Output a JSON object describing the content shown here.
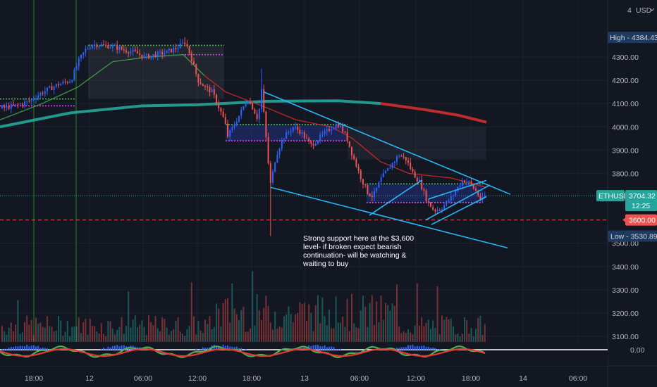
{
  "chart_data": {
    "type": "candlestick",
    "symbol": "ETHUSD",
    "currency": "USD",
    "price_axis": {
      "ticks": [
        3100,
        3200,
        3300,
        3400,
        3500,
        3800,
        3900,
        4000,
        4100,
        4200,
        4300
      ],
      "tick_labels": [
        "3100.00",
        "3200.00",
        "3300.00",
        "3400.00",
        "3500.00",
        "3800.00",
        "3900.00",
        "4000.00",
        "4100.00",
        "4200.00",
        "4300.00"
      ],
      "range": [
        3080,
        4420
      ]
    },
    "time_axis": {
      "labels": [
        "18:00",
        "12",
        "06:00",
        "12:00",
        "18:00",
        "13",
        "06:00",
        "12:00",
        "18:00",
        "14",
        "06:00"
      ]
    },
    "badges": {
      "high": {
        "label": "High",
        "value": "4384.43",
        "price": 4384.43
      },
      "current": {
        "label": "ETHUSD",
        "value": "3704.32",
        "countdown": "12:25",
        "price": 3704.32
      },
      "level": {
        "value": "3600.00",
        "price": 3600
      },
      "low": {
        "label": "Low",
        "value": "3530.89",
        "price": 3530.89
      }
    },
    "macd_zero_label": "0.00",
    "annotation": "Strong support here at the $3,600 level- if broken expect bearish continuation- will be watching & waiting to buy",
    "price_path": [
      [
        0,
        4080
      ],
      [
        20,
        4090
      ],
      [
        40,
        4110
      ],
      [
        60,
        4150
      ],
      [
        80,
        4180
      ],
      [
        100,
        4200
      ],
      [
        110,
        4280
      ],
      [
        120,
        4330
      ],
      [
        130,
        4355
      ],
      [
        145,
        4350
      ],
      [
        160,
        4345
      ],
      [
        175,
        4330
      ],
      [
        190,
        4320
      ],
      [
        205,
        4300
      ],
      [
        220,
        4310
      ],
      [
        235,
        4320
      ],
      [
        250,
        4340
      ],
      [
        262,
        4365
      ],
      [
        270,
        4300
      ],
      [
        280,
        4200
      ],
      [
        290,
        4170
      ],
      [
        300,
        4150
      ],
      [
        310,
        4080
      ],
      [
        318,
        4020
      ],
      [
        322,
        3960
      ],
      [
        330,
        4000
      ],
      [
        340,
        4060
      ],
      [
        350,
        4120
      ],
      [
        358,
        4080
      ],
      [
        365,
        4030
      ],
      [
        370,
        4160
      ],
      [
        375,
        4000
      ],
      [
        380,
        3830
      ],
      [
        383,
        3750
      ],
      [
        390,
        3870
      ],
      [
        400,
        3950
      ],
      [
        415,
        4000
      ],
      [
        425,
        3980
      ],
      [
        440,
        3920
      ],
      [
        455,
        3960
      ],
      [
        470,
        4000
      ],
      [
        480,
        4010
      ],
      [
        490,
        3960
      ],
      [
        500,
        3870
      ],
      [
        510,
        3790
      ],
      [
        520,
        3720
      ],
      [
        528,
        3700
      ],
      [
        540,
        3780
      ],
      [
        555,
        3840
      ],
      [
        565,
        3880
      ],
      [
        575,
        3860
      ],
      [
        585,
        3800
      ],
      [
        595,
        3760
      ],
      [
        605,
        3680
      ],
      [
        615,
        3640
      ],
      [
        625,
        3650
      ],
      [
        640,
        3700
      ],
      [
        655,
        3770
      ],
      [
        665,
        3760
      ],
      [
        675,
        3720
      ],
      [
        682,
        3680
      ],
      [
        688,
        3710
      ],
      [
        690,
        3704.32
      ]
    ],
    "moving_averages": [
      {
        "color": "#26a69a",
        "points": [
          [
            0,
            4000
          ],
          [
            100,
            4060
          ],
          [
            200,
            4090
          ],
          [
            280,
            4095
          ],
          [
            380,
            4110
          ],
          [
            480,
            4112
          ],
          [
            540,
            4100
          ]
        ]
      },
      {
        "color": "#d32f2f",
        "points": [
          [
            540,
            4100
          ],
          [
            600,
            4075
          ],
          [
            650,
            4050
          ],
          [
            690,
            4020
          ]
        ]
      },
      {
        "color": "#43a047",
        "points": [
          [
            0,
            4030
          ],
          [
            60,
            4100
          ],
          [
            110,
            4170
          ],
          [
            160,
            4280
          ],
          [
            210,
            4300
          ],
          [
            260,
            4310
          ],
          [
            290,
            4220
          ]
        ]
      },
      {
        "color": "#c62828",
        "points": [
          [
            290,
            4220
          ],
          [
            320,
            4150
          ],
          [
            380,
            4080
          ],
          [
            420,
            4030
          ],
          [
            470,
            4000
          ],
          [
            500,
            3950
          ],
          [
            540,
            3850
          ],
          [
            580,
            3800
          ],
          [
            640,
            3780
          ],
          [
            690,
            3740
          ]
        ]
      }
    ],
    "trendlines": [
      [
        [
          374,
          4150
        ],
        [
          724,
          3710
        ]
      ],
      [
        [
          384,
          3740
        ],
        [
          720,
          3480
        ]
      ],
      [
        [
          524,
          3620
        ],
        [
          598,
          3770
        ]
      ],
      [
        [
          604,
          3600
        ],
        [
          695,
          3750
        ]
      ],
      [
        [
          608,
          3690
        ],
        [
          690,
          3770
        ]
      ],
      [
        [
          612,
          3580
        ],
        [
          690,
          3700
        ]
      ]
    ],
    "horizontal_levels": [
      {
        "price": 4350,
        "x1": 125,
        "x2": 318,
        "color": "#4caf50"
      },
      {
        "price": 4310,
        "x1": 258,
        "x2": 318,
        "color": "#e040fb"
      },
      {
        "price": 4120,
        "x1": 0,
        "x2": 108,
        "color": "#4caf50"
      },
      {
        "price": 4090,
        "x1": 0,
        "x2": 108,
        "color": "#e040fb"
      },
      {
        "price": 4010,
        "x1": 320,
        "x2": 493,
        "color": "#4caf50"
      },
      {
        "price": 3940,
        "x1": 320,
        "x2": 493,
        "color": "#e040fb"
      },
      {
        "price": 3755,
        "x1": 520,
        "x2": 685,
        "color": "#4caf50"
      },
      {
        "price": 3675,
        "x1": 520,
        "x2": 685,
        "color": "#e040fb"
      }
    ],
    "zones": [
      {
        "x1": 125,
        "x2": 318,
        "p1": 4350,
        "p2": 4120,
        "color": "rgba(200,200,220,0.08)"
      },
      {
        "x1": 320,
        "x2": 493,
        "p1": 4010,
        "p2": 3940,
        "color": "rgba(40,60,180,0.35)"
      },
      {
        "x1": 520,
        "x2": 685,
        "p1": 3755,
        "p2": 3675,
        "color": "rgba(40,60,180,0.35)"
      },
      {
        "x1": 493,
        "x2": 690,
        "p1": 4000,
        "p2": 3860,
        "color": "rgba(200,200,220,0.06)"
      }
    ]
  }
}
